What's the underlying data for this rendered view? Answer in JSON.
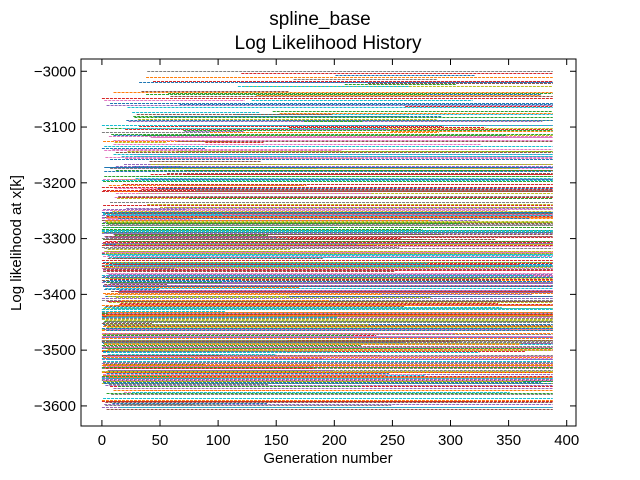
{
  "chart_data": {
    "type": "line",
    "title_lines": [
      "spline_base",
      "Log Likelihood History"
    ],
    "xlabel": "Generation number",
    "ylabel": "Log likelihood at x[k]",
    "xlim": [
      -18,
      408
    ],
    "ylim": [
      -3636,
      -2978
    ],
    "xticks": [
      0,
      50,
      100,
      150,
      200,
      250,
      300,
      350,
      400
    ],
    "yticks": [
      -3000,
      -3100,
      -3200,
      -3300,
      -3400,
      -3500,
      -3600
    ],
    "yticks_labels": [
      "−3000",
      "−3100",
      "−3200",
      "−3300",
      "−3400",
      "−3500",
      "−3600"
    ],
    "xticks_labels": [
      "0",
      "50",
      "100",
      "150",
      "200",
      "250",
      "300",
      "350",
      "400"
    ],
    "grid": false,
    "series_description": "hundreds of individual log-likelihood traces, each a dashed horizontal segment between generations 0 and 388",
    "series_extent": {
      "gen_min": 0,
      "gen_max": 388
    },
    "series_density_bands": [
      {
        "ll_low": -3605,
        "ll_high": -3560,
        "gen_start_max": 40,
        "weight": 0.04
      },
      {
        "ll_low": -3560,
        "ll_high": -3420,
        "gen_start_max": 10,
        "weight": 0.34
      },
      {
        "ll_low": -3420,
        "ll_high": -3250,
        "gen_start_max": 20,
        "weight": 0.34
      },
      {
        "ll_low": -3250,
        "ll_high": -3120,
        "gen_start_max": 120,
        "weight": 0.18
      },
      {
        "ll_low": -3120,
        "ll_high": -2998,
        "gen_start_max": 320,
        "weight": 0.1
      }
    ],
    "series_count": 520,
    "series_colors": [
      "#1f77b4",
      "#ff7f0e",
      "#2ca02c",
      "#d62728",
      "#9467bd",
      "#8c564b",
      "#e377c2",
      "#7f7f7f",
      "#bcbd22",
      "#17becf"
    ]
  }
}
